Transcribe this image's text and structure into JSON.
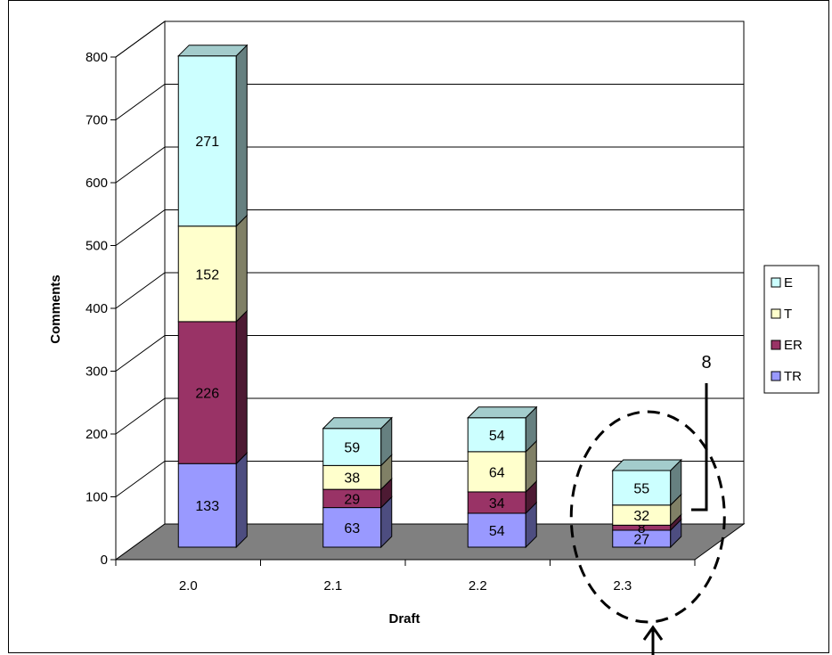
{
  "chart_data": {
    "type": "bar",
    "stacked": true,
    "style": "3d-column",
    "categories": [
      "2.0",
      "2.1",
      "2.2",
      "2.3"
    ],
    "series": [
      {
        "name": "TR",
        "values": [
          133,
          63,
          54,
          27
        ],
        "color": "#9999ff"
      },
      {
        "name": "ER",
        "values": [
          226,
          29,
          34,
          8
        ],
        "color": "#993366"
      },
      {
        "name": "T",
        "values": [
          152,
          38,
          64,
          32
        ],
        "color": "#ffffcc"
      },
      {
        "name": "E",
        "values": [
          271,
          59,
          54,
          55
        ],
        "color": "#ccffff"
      }
    ],
    "xlabel": "Draft",
    "ylabel": "Comments",
    "ylim": [
      0,
      800
    ],
    "yticks": [
      0,
      100,
      200,
      300,
      400,
      500,
      600,
      700,
      800
    ],
    "grid": true,
    "legend_position": "right",
    "floor_color": "#808080",
    "annotations": [
      {
        "text": "8",
        "target": "2.3 ER segment"
      }
    ]
  }
}
